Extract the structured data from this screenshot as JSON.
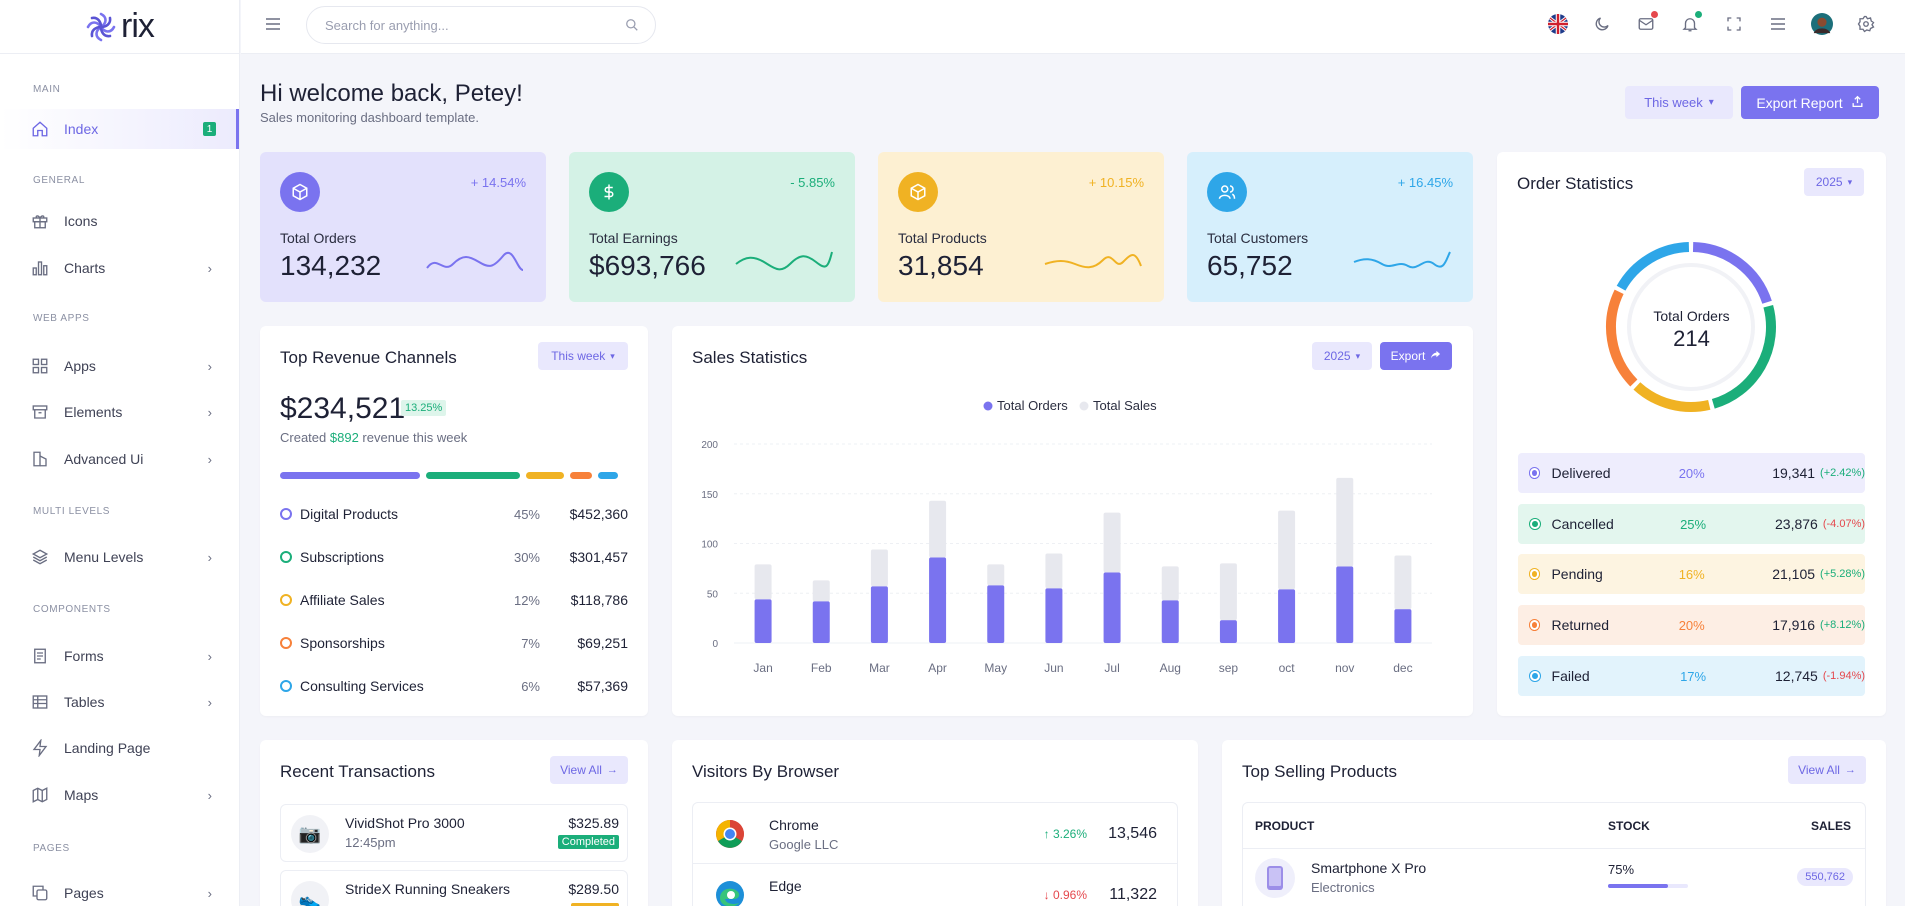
{
  "app": {
    "logo_text": "rix"
  },
  "sidebar": {
    "categories": {
      "main": "MAIN",
      "general": "GENERAL",
      "web_apps": "WEB APPS",
      "multi_levels": "MULTI LEVELS",
      "components": "COMPONENTS",
      "pages": "PAGES"
    },
    "items": {
      "index": {
        "label": "Index",
        "badge": "1"
      },
      "icons": {
        "label": "Icons"
      },
      "charts": {
        "label": "Charts"
      },
      "apps": {
        "label": "Apps"
      },
      "elements": {
        "label": "Elements"
      },
      "advanced_ui": {
        "label": "Advanced Ui"
      },
      "menu_levels": {
        "label": "Menu Levels"
      },
      "forms": {
        "label": "Forms"
      },
      "tables": {
        "label": "Tables"
      },
      "landing_page": {
        "label": "Landing Page"
      },
      "maps": {
        "label": "Maps"
      },
      "pages": {
        "label": "Pages"
      }
    }
  },
  "topbar": {
    "search_placeholder": "Search for anything..."
  },
  "header": {
    "title": "Hi welcome back, Petey!",
    "subtitle": "Sales monitoring dashboard template.",
    "period_button": "This week",
    "export_button": "Export Report"
  },
  "stats": [
    {
      "label": "Total Orders",
      "value": "134,232",
      "change": "+ 14.54%",
      "color": "#7a73ef",
      "bg": "#e3e1fc"
    },
    {
      "label": "Total Earnings",
      "value": "$693,766",
      "change": "- 5.85%",
      "color": "#1bae7a",
      "bg": "#d4f2e6"
    },
    {
      "label": "Total Products",
      "value": "31,854",
      "change": "+ 10.15%",
      "color": "#f0b223",
      "bg": "#fdf0d2"
    },
    {
      "label": "Total Customers",
      "value": "65,752",
      "change": "+ 16.45%",
      "color": "#2ea6e8",
      "bg": "#d6effc"
    }
  ],
  "revenue_channels": {
    "title": "Top Revenue Channels",
    "period": "This week",
    "total": "$234,521",
    "total_change": "13.25%",
    "created_prefix": "Created",
    "created_amount": "$892",
    "created_suffix": "revenue this week",
    "rows": [
      {
        "name": "Digital Products",
        "pct": "45%",
        "amount": "$452,360",
        "color": "#7a73ef"
      },
      {
        "name": "Subscriptions",
        "pct": "30%",
        "amount": "$301,457",
        "color": "#1bae7a"
      },
      {
        "name": "Affiliate Sales",
        "pct": "12%",
        "amount": "$118,786",
        "color": "#f0b223"
      },
      {
        "name": "Sponsorships",
        "pct": "7%",
        "amount": "$69,251",
        "color": "#f7813a"
      },
      {
        "name": "Consulting Services",
        "pct": "6%",
        "amount": "$57,369",
        "color": "#2ea6e8"
      }
    ]
  },
  "sales_statistics": {
    "title": "Sales Statistics",
    "year": "2025",
    "export": "Export"
  },
  "chart_data": {
    "type": "bar",
    "categories": [
      "Jan",
      "Feb",
      "Mar",
      "Apr",
      "May",
      "Jun",
      "Jul",
      "Aug",
      "sep",
      "oct",
      "nov",
      "dec"
    ],
    "series": [
      {
        "name": "Total Orders",
        "values": [
          44,
          42,
          57,
          86,
          58,
          55,
          71,
          43,
          23,
          54,
          77,
          34
        ],
        "color": "#7a73ef"
      },
      {
        "name": "Total Sales",
        "values": [
          35,
          21,
          37,
          57,
          21,
          35,
          60,
          34,
          57,
          79,
          89,
          54
        ],
        "color": "#e7e8ee"
      }
    ],
    "stacked": true,
    "ylim": [
      0,
      200
    ],
    "yticks": [
      0,
      50,
      100,
      150,
      200
    ],
    "legend_position": "top-center",
    "grid": true
  },
  "order_statistics": {
    "title": "Order Statistics",
    "year": "2025",
    "center_label": "Total Orders",
    "center_value": "214",
    "donut": [
      {
        "name": "Delivered",
        "pct": 20,
        "color": "#7a73ef"
      },
      {
        "name": "Cancelled",
        "pct": 25,
        "color": "#1bae7a"
      },
      {
        "name": "Pending",
        "pct": 16,
        "color": "#f0b223"
      },
      {
        "name": "Returned",
        "pct": 20,
        "color": "#f7813a"
      },
      {
        "name": "Failed",
        "pct": 17,
        "color": "#2ea6e8"
      }
    ],
    "rows": [
      {
        "name": "Delivered",
        "pct": "20%",
        "value": "19,341",
        "change": "(+2.42%)",
        "color": "#7a73ef",
        "bg": "#eeedfd",
        "change_color": "#1bae7a"
      },
      {
        "name": "Cancelled",
        "pct": "25%",
        "value": "23,876",
        "change": "(-4.07%)",
        "color": "#1bae7a",
        "bg": "#e3f6ee",
        "change_color": "#e5484d"
      },
      {
        "name": "Pending",
        "pct": "16%",
        "value": "21,105",
        "change": "(+5.28%)",
        "color": "#f0b223",
        "bg": "#fdf4e1",
        "change_color": "#1bae7a"
      },
      {
        "name": "Returned",
        "pct": "20%",
        "value": "17,916",
        "change": "(+8.12%)",
        "color": "#f7813a",
        "bg": "#fdeee4",
        "change_color": "#1bae7a"
      },
      {
        "name": "Failed",
        "pct": "17%",
        "value": "12,745",
        "change": "(-1.94%)",
        "color": "#2ea6e8",
        "bg": "#e2f3fc",
        "change_color": "#e5484d"
      }
    ]
  },
  "transactions": {
    "title": "Recent Transactions",
    "view_all": "View All",
    "rows": [
      {
        "name": "VividShot Pro 3000",
        "time": "12:45pm",
        "amount": "$325.89",
        "status": "Completed",
        "status_color": "#1bae7a",
        "icon": "camera-icon"
      },
      {
        "name": "StrideX Running Sneakers",
        "time": "",
        "amount": "$289.50",
        "status": "",
        "status_color": "#f0b223",
        "icon": "sneaker-icon"
      }
    ]
  },
  "browsers": {
    "title": "Visitors By Browser",
    "rows": [
      {
        "name": "Chrome",
        "company": "Google LLC",
        "change": "3.26%",
        "up": true,
        "value": "13,546"
      },
      {
        "name": "Edge",
        "company": "",
        "change": "0.96%",
        "up": false,
        "value": "11,322"
      }
    ]
  },
  "top_products": {
    "title": "Top Selling Products",
    "view_all": "View All",
    "columns": [
      "PRODUCT",
      "STOCK",
      "SALES"
    ],
    "rows": [
      {
        "name": "Smartphone X Pro",
        "category": "Electronics",
        "stock": "75%",
        "stock_value": 0.75,
        "sales": "550,762"
      }
    ]
  }
}
